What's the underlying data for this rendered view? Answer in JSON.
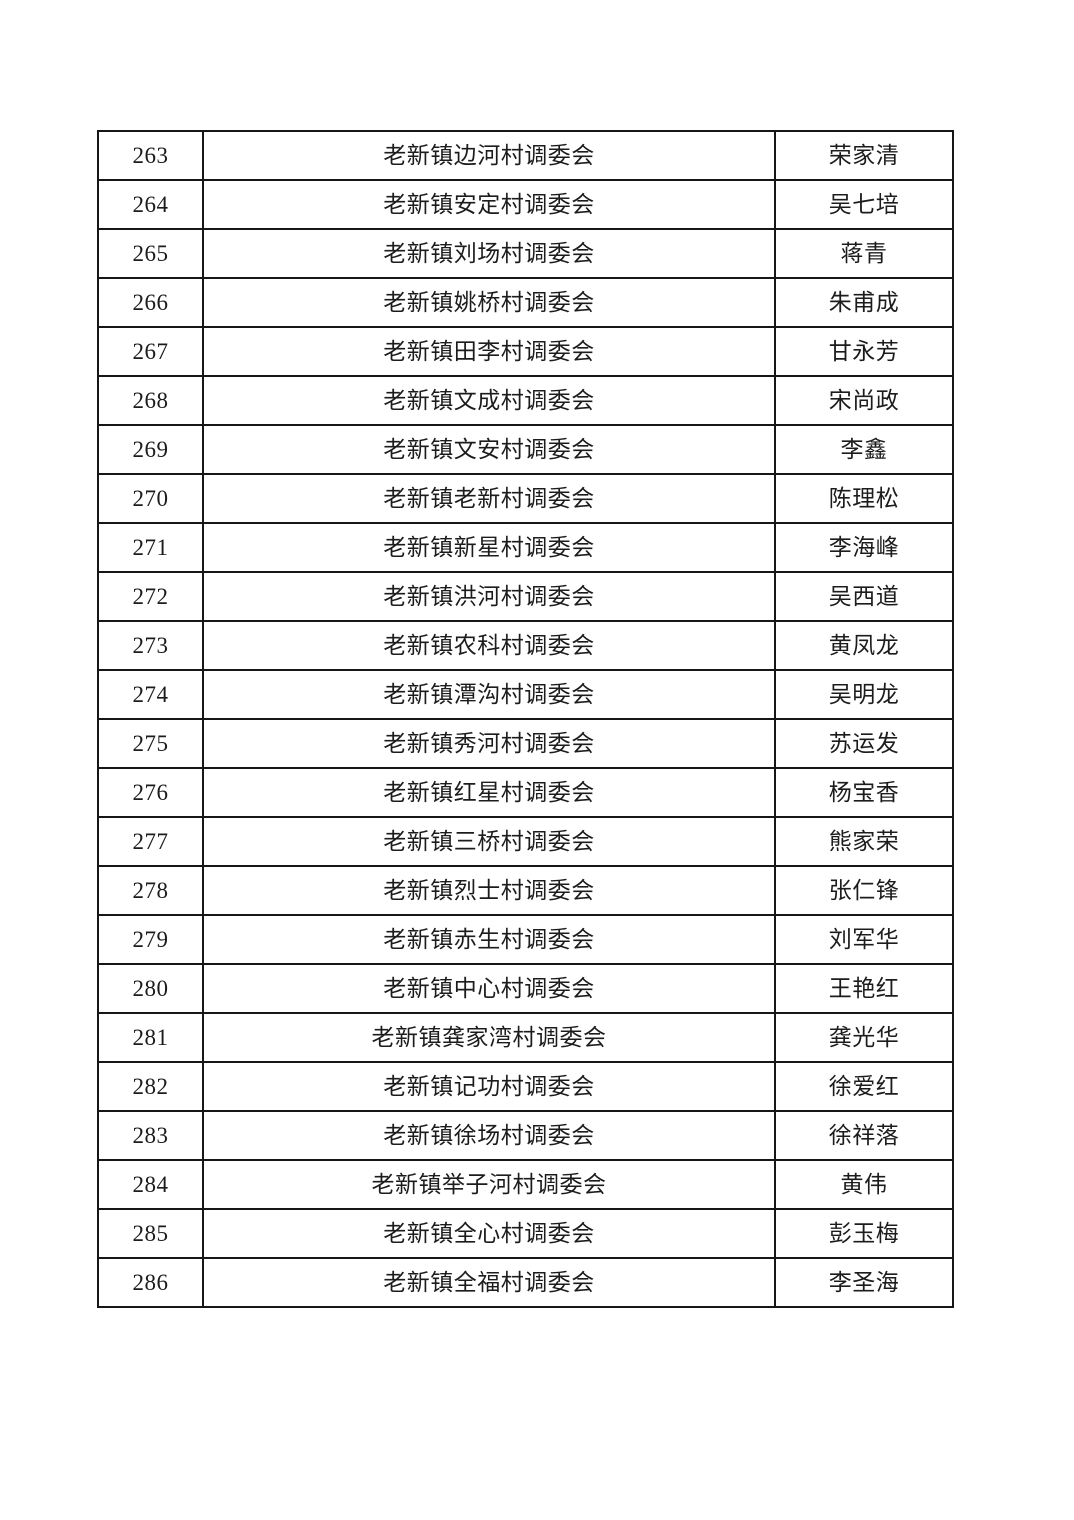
{
  "table": {
    "rows": [
      {
        "no": "263",
        "org": "老新镇边河村调委会",
        "name": "荣家清"
      },
      {
        "no": "264",
        "org": "老新镇安定村调委会",
        "name": "吴七培"
      },
      {
        "no": "265",
        "org": "老新镇刘场村调委会",
        "name": "蒋青"
      },
      {
        "no": "266",
        "org": "老新镇姚桥村调委会",
        "name": "朱甫成"
      },
      {
        "no": "267",
        "org": "老新镇田李村调委会",
        "name": "甘永芳"
      },
      {
        "no": "268",
        "org": "老新镇文成村调委会",
        "name": "宋尚政"
      },
      {
        "no": "269",
        "org": "老新镇文安村调委会",
        "name": "李鑫"
      },
      {
        "no": "270",
        "org": "老新镇老新村调委会",
        "name": "陈理松"
      },
      {
        "no": "271",
        "org": "老新镇新星村调委会",
        "name": "李海峰"
      },
      {
        "no": "272",
        "org": "老新镇洪河村调委会",
        "name": "吴西道"
      },
      {
        "no": "273",
        "org": "老新镇农科村调委会",
        "name": "黄凤龙"
      },
      {
        "no": "274",
        "org": "老新镇潭沟村调委会",
        "name": "吴明龙"
      },
      {
        "no": "275",
        "org": "老新镇秀河村调委会",
        "name": "苏运发"
      },
      {
        "no": "276",
        "org": "老新镇红星村调委会",
        "name": "杨宝香"
      },
      {
        "no": "277",
        "org": "老新镇三桥村调委会",
        "name": "熊家荣"
      },
      {
        "no": "278",
        "org": "老新镇烈士村调委会",
        "name": "张仁锋"
      },
      {
        "no": "279",
        "org": "老新镇赤生村调委会",
        "name": "刘军华"
      },
      {
        "no": "280",
        "org": "老新镇中心村调委会",
        "name": "王艳红"
      },
      {
        "no": "281",
        "org": "老新镇龚家湾村调委会",
        "name": "龚光华"
      },
      {
        "no": "282",
        "org": "老新镇记功村调委会",
        "name": "徐爱红"
      },
      {
        "no": "283",
        "org": "老新镇徐场村调委会",
        "name": "徐祥落"
      },
      {
        "no": "284",
        "org": "老新镇举子河村调委会",
        "name": "黄伟"
      },
      {
        "no": "285",
        "org": "老新镇全心村调委会",
        "name": "彭玉梅"
      },
      {
        "no": "286",
        "org": "老新镇全福村调委会",
        "name": "李圣海"
      }
    ]
  }
}
